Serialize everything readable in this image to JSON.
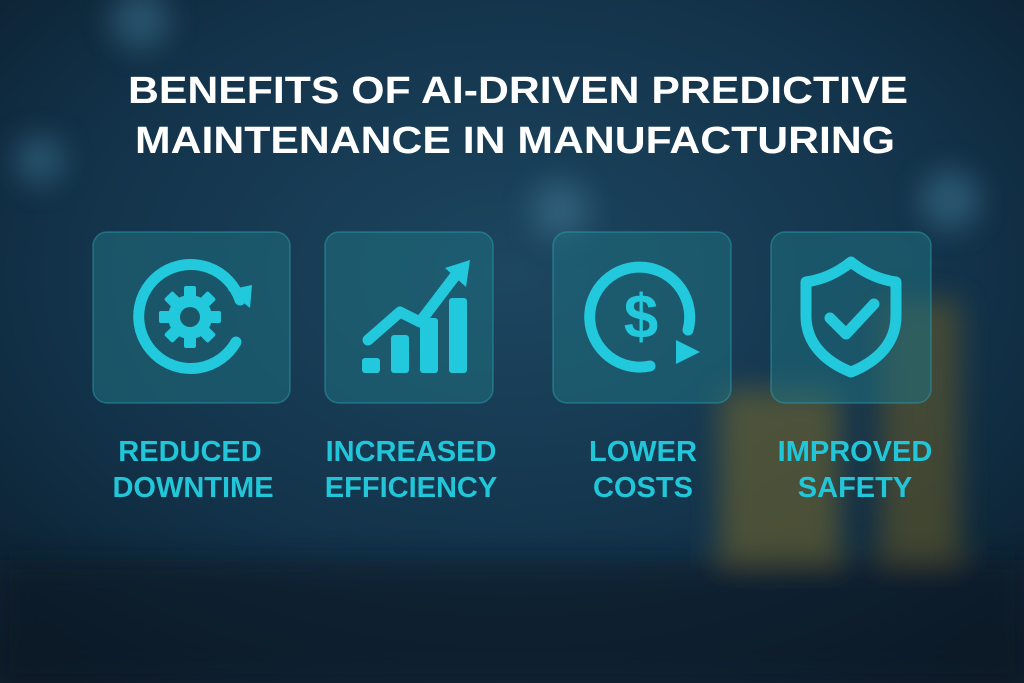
{
  "header": {
    "title_lines": [
      "BENEFITS OF AI-DRIVEN PREDICTIVE",
      "MAINTENANCE IN MANUFACTURING"
    ]
  },
  "benefits": [
    {
      "label_lines": [
        "REDUCED",
        "DOWNTIME"
      ]
    },
    {
      "label_lines": [
        "INCREASED",
        "EFFICIENCY"
      ]
    },
    {
      "label_lines": [
        "LOWER",
        "COSTS"
      ]
    },
    {
      "label_lines": [
        "IMPROVED",
        "SAFETY"
      ]
    }
  ]
}
